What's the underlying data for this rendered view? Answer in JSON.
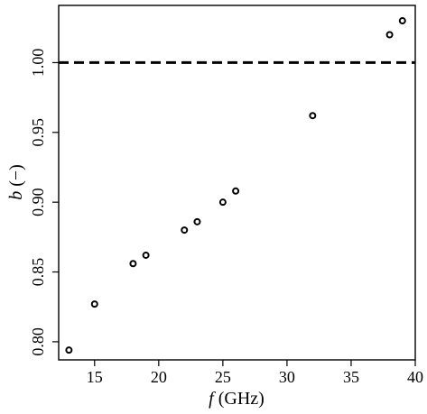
{
  "chart_data": {
    "type": "scatter",
    "xlabel_var": "f",
    "xlabel_unit": " (GHz)",
    "ylabel_var": "b",
    "ylabel_unit": " (−)",
    "xlim": [
      12.2,
      40
    ],
    "ylim": [
      0.787,
      1.041
    ],
    "xticks": [
      15,
      20,
      25,
      30,
      35,
      40
    ],
    "yticks": [
      0.8,
      0.85,
      0.9,
      0.95,
      1.0
    ],
    "ytick_labels": [
      "0.80",
      "0.85",
      "0.90",
      "0.95",
      "1.00"
    ],
    "grid": false,
    "reference_line": {
      "y": 1.0,
      "style": "dashed",
      "color": "#000000"
    },
    "series": [
      {
        "marker": "open-circle",
        "color": "#000000",
        "x": [
          13,
          15,
          18,
          19,
          22,
          23,
          25,
          26,
          32,
          38,
          39
        ],
        "y": [
          0.794,
          0.827,
          0.856,
          0.862,
          0.88,
          0.886,
          0.9,
          0.908,
          0.962,
          1.02,
          1.03
        ]
      }
    ]
  }
}
